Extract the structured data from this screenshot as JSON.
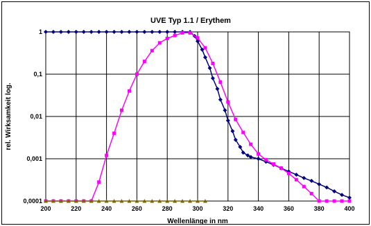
{
  "chart_data": {
    "type": "line",
    "title": "UVE Typ 1.1 / Erythem",
    "xlabel": "Wellenlänge in nm",
    "ylabel": "rel. Wirksamkeit log.",
    "xlim": [
      200,
      400
    ],
    "ylim": [
      0.0001,
      1
    ],
    "y_scale": "log",
    "grid": true,
    "x_ticks": [
      "200",
      "220",
      "240",
      "260",
      "280",
      "300",
      "320",
      "340",
      "360",
      "380",
      "400"
    ],
    "x_tick_values": [
      200,
      220,
      240,
      260,
      280,
      300,
      320,
      340,
      360,
      380,
      400
    ],
    "y_ticks": [
      "1",
      "0,1",
      "0,01",
      "0,001",
      "0,0001"
    ],
    "y_tick_values": [
      1,
      0.1,
      0.01,
      0.001,
      0.0001
    ],
    "series": [
      {
        "color": "#000080",
        "marker": "diamond",
        "points": [
          [
            200,
            1
          ],
          [
            205,
            1
          ],
          [
            210,
            1
          ],
          [
            215,
            1
          ],
          [
            220,
            1
          ],
          [
            225,
            1
          ],
          [
            230,
            1
          ],
          [
            235,
            1
          ],
          [
            240,
            1
          ],
          [
            245,
            1
          ],
          [
            250,
            1
          ],
          [
            255,
            1
          ],
          [
            260,
            1
          ],
          [
            265,
            1
          ],
          [
            270,
            1
          ],
          [
            275,
            1
          ],
          [
            280,
            1
          ],
          [
            285,
            1
          ],
          [
            290,
            1
          ],
          [
            295,
            1
          ],
          [
            298,
            0.8
          ],
          [
            300,
            0.6
          ],
          [
            303,
            0.38
          ],
          [
            305,
            0.25
          ],
          [
            308,
            0.14
          ],
          [
            310,
            0.08
          ],
          [
            313,
            0.045
          ],
          [
            315,
            0.025
          ],
          [
            318,
            0.014
          ],
          [
            320,
            0.008
          ],
          [
            323,
            0.0045
          ],
          [
            325,
            0.0028
          ],
          [
            328,
            0.0019
          ],
          [
            330,
            0.0014
          ],
          [
            333,
            0.0012
          ],
          [
            335,
            0.0011
          ],
          [
            340,
            0.001
          ],
          [
            345,
            0.00085
          ],
          [
            350,
            0.00072
          ],
          [
            355,
            0.0006
          ],
          [
            360,
            0.0005
          ],
          [
            365,
            0.00042
          ],
          [
            370,
            0.00035
          ],
          [
            375,
            0.0003
          ],
          [
            380,
            0.00025
          ],
          [
            385,
            0.00021
          ],
          [
            390,
            0.00017
          ],
          [
            395,
            0.00014
          ],
          [
            400,
            0.00012
          ]
        ]
      },
      {
        "color": "#FF00FF",
        "marker": "square",
        "points": [
          [
            200,
            0.0001
          ],
          [
            205,
            0.0001
          ],
          [
            210,
            0.0001
          ],
          [
            215,
            0.0001
          ],
          [
            220,
            0.0001
          ],
          [
            225,
            0.0001
          ],
          [
            230,
            0.0001
          ],
          [
            235,
            0.00028
          ],
          [
            240,
            0.0012
          ],
          [
            245,
            0.004
          ],
          [
            250,
            0.014
          ],
          [
            255,
            0.04
          ],
          [
            260,
            0.1
          ],
          [
            265,
            0.2
          ],
          [
            270,
            0.36
          ],
          [
            275,
            0.55
          ],
          [
            280,
            0.7
          ],
          [
            285,
            0.82
          ],
          [
            290,
            0.95
          ],
          [
            295,
            0.95
          ],
          [
            300,
            0.72
          ],
          [
            305,
            0.42
          ],
          [
            310,
            0.18
          ],
          [
            315,
            0.065
          ],
          [
            320,
            0.022
          ],
          [
            325,
            0.0085
          ],
          [
            330,
            0.0042
          ],
          [
            335,
            0.0022
          ],
          [
            340,
            0.0013
          ],
          [
            345,
            0.00095
          ],
          [
            350,
            0.00075
          ],
          [
            355,
            0.0006
          ],
          [
            360,
            0.00045
          ],
          [
            365,
            0.00032
          ],
          [
            370,
            0.00022
          ],
          [
            375,
            0.00015
          ],
          [
            380,
            0.0001
          ],
          [
            385,
            0.0001
          ],
          [
            390,
            0.0001
          ],
          [
            395,
            0.0001
          ],
          [
            400,
            0.0001
          ]
        ]
      },
      {
        "color": "#806600",
        "marker": "triangle",
        "points": [
          [
            200,
            0.0001
          ],
          [
            205,
            0.0001
          ],
          [
            210,
            0.0001
          ],
          [
            215,
            0.0001
          ],
          [
            220,
            0.0001
          ],
          [
            225,
            0.0001
          ],
          [
            230,
            0.0001
          ],
          [
            235,
            0.0001
          ],
          [
            240,
            0.0001
          ],
          [
            245,
            0.0001
          ],
          [
            250,
            0.0001
          ],
          [
            255,
            0.0001
          ],
          [
            260,
            0.0001
          ],
          [
            265,
            0.0001
          ],
          [
            270,
            0.0001
          ],
          [
            275,
            0.0001
          ],
          [
            280,
            0.0001
          ],
          [
            285,
            0.0001
          ],
          [
            290,
            0.0001
          ],
          [
            295,
            0.0001
          ],
          [
            300,
            0.0001
          ],
          [
            305,
            0.0001
          ]
        ]
      }
    ]
  }
}
